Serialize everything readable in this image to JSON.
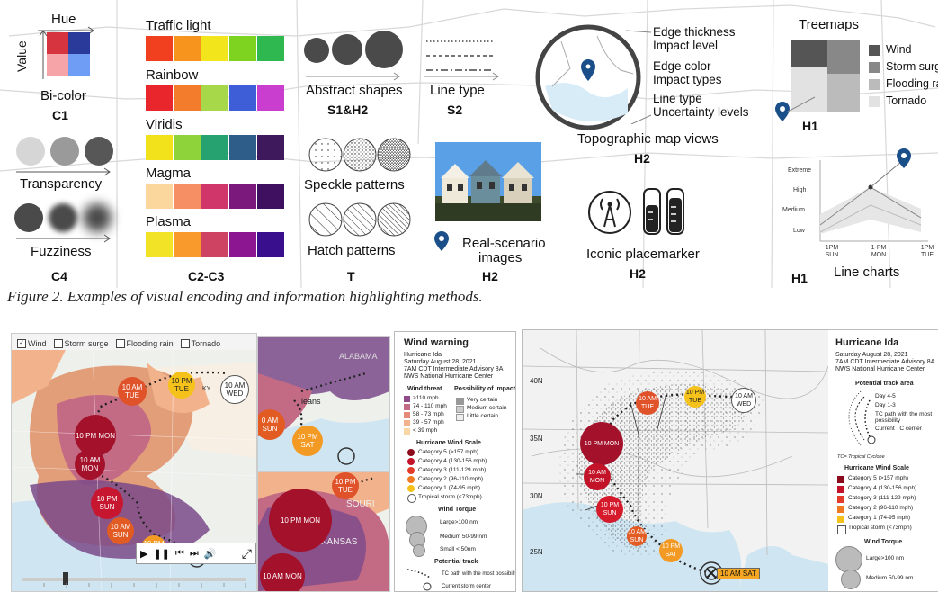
{
  "figure": {
    "caption": "Figure 2. Examples of visual encoding and information highlighting methods.",
    "c1": {
      "hue_label": "Hue",
      "value_label": "Value",
      "bicolor_label": "Bi-color",
      "code": "C1",
      "colors": [
        "#d6343f",
        "#2a3a9b",
        "#f6a4a8",
        "#6f9cf5"
      ]
    },
    "c4": {
      "transparency_label": "Transparency",
      "fuzziness_label": "Fuzziness",
      "code": "C4"
    },
    "c2c3": {
      "code": "C2-C3",
      "palettes": [
        {
          "name": "Traffic light",
          "colors": [
            "#f0401f",
            "#f7941d",
            "#f2e51b",
            "#7ed321",
            "#2eb84f"
          ]
        },
        {
          "name": "Rainbow",
          "colors": [
            "#e8262b",
            "#f27c2c",
            "#a6d84a",
            "#3e5ed8",
            "#c93ecf"
          ]
        },
        {
          "name": "Viridis",
          "colors": [
            "#f1e21c",
            "#8ed33a",
            "#25a270",
            "#2d5d88",
            "#3e1a5c"
          ]
        },
        {
          "name": "Magma",
          "colors": [
            "#fbd79d",
            "#f78f64",
            "#d1366a",
            "#7b1a7c",
            "#3f1060"
          ]
        },
        {
          "name": "Plasma",
          "colors": [
            "#f2e327",
            "#f89a2c",
            "#cf4362",
            "#8c1592",
            "#3a0f8e"
          ]
        }
      ]
    },
    "s1h2": {
      "label": "Abstract shapes",
      "code": "S1&H2"
    },
    "t": {
      "speckle_label": "Speckle patterns",
      "hatch_label": "Hatch patterns",
      "code": "T"
    },
    "s2": {
      "label": "Line type",
      "code": "S2"
    },
    "h2_real": {
      "label_line1": "Real-scenario",
      "label_line2": "images",
      "code": "H2"
    },
    "h2_topo": {
      "label": "Topographic map views",
      "code": "H2",
      "legend": [
        "Edge thickness",
        "Impact level",
        "Edge color",
        "Impact types",
        "Line type",
        "Uncertainty levels"
      ]
    },
    "h2_icon": {
      "label": "Iconic placemarker",
      "code": "H2"
    },
    "h1_tree": {
      "label": "Treemaps",
      "code": "H1",
      "items": [
        {
          "name": "Wind",
          "color": "#555555"
        },
        {
          "name": "Storm surge",
          "color": "#888888"
        },
        {
          "name": "Flooding rain",
          "color": "#bbbbbb"
        },
        {
          "name": "Tornado",
          "color": "#e2e2e2"
        }
      ]
    },
    "h1_line": {
      "label": "Line charts",
      "code": "H1",
      "y_ticks": [
        "Extreme",
        "High",
        "Medium",
        "Low"
      ],
      "x_ticks": [
        "1PM SUN",
        "1-PM MON",
        "1PM TUE"
      ]
    }
  },
  "screenshot_left": {
    "checkboxes": [
      {
        "label": "Wind",
        "checked": true
      },
      {
        "label": "Storm surge",
        "checked": false
      },
      {
        "label": "Flooding rain",
        "checked": false
      },
      {
        "label": "Tornado",
        "checked": false
      }
    ],
    "tc_points": [
      {
        "text": "10 PM TUE",
        "color": "#f5c21b"
      },
      {
        "text": "10 AM WED",
        "color": "#ffffff"
      },
      {
        "text": "10 AM TUE",
        "color": "#e0522a"
      },
      {
        "text": "10 PM MON",
        "color": "#a3112b"
      },
      {
        "text": "10 AM MON",
        "color": "#a3112b"
      },
      {
        "text": "10 PM SUN",
        "color": "#c7162f"
      },
      {
        "text": "10 AM SUN",
        "color": "#e25b23"
      },
      {
        "text": "10 PM SAT",
        "color": "#f39a24"
      }
    ],
    "map_labels": {
      "ky": "KY"
    },
    "player_controls": [
      "▶",
      "❚❚",
      "⏮",
      "⏭",
      "🔊"
    ],
    "expand_icon": "⤢"
  },
  "screenshot_middle": {
    "top_labels": {
      "alabama": "ALABAMA",
      "orleans": "leans"
    },
    "tc_points": [
      {
        "text": "0 AM SUN",
        "color": "#e25b23"
      },
      {
        "text": "10 PM SAT",
        "color": "#f39a24"
      }
    ],
    "bottom_labels": {
      "souri": "SOURI",
      "arkansas": "ARKANSAS"
    },
    "bottom_tc": [
      {
        "text": "10 PM TUE",
        "color": "#e0522a"
      },
      {
        "text": "10 PM MON",
        "color": "#a3112b"
      },
      {
        "text": "10 AM MON",
        "color": "#a3112b"
      }
    ]
  },
  "wind_warning": {
    "title": "Wind warning",
    "storm": "Hurricane Ida",
    "date": "Saturday August 28, 2021",
    "advisory": "7AM CDT Intermediate Advisory 8A",
    "center": "NWS National Hurricane Center",
    "wind_threat_title": "Wind threat",
    "wind_threat": [
      {
        "label": ">110 mph",
        "color": "#8f4a8a"
      },
      {
        "label": "74 - 110 mph",
        "color": "#c26a86"
      },
      {
        "label": "58 - 73 mph",
        "color": "#e58a78"
      },
      {
        "label": "39 - 57 mph",
        "color": "#f2b38c"
      },
      {
        "label": "< 39 mph",
        "color": "#f8d7a4"
      }
    ],
    "impact_title": "Possibility of impact",
    "impact": [
      "Very certain",
      "Medium certain",
      "Little certain"
    ],
    "scale_title": "Hurricane Wind Scale",
    "scale": [
      {
        "label": "Category 5 (>157 mph)",
        "color": "#8b0a1c"
      },
      {
        "label": "Category 4 (130-156 mph)",
        "color": "#c21328"
      },
      {
        "label": "Category 3 (111-129 mph)",
        "color": "#e23b2a"
      },
      {
        "label": "Category 2 (96-110 mph)",
        "color": "#f07a22"
      },
      {
        "label": "Category 1 (74-95 mph)",
        "color": "#f5c21b"
      },
      {
        "label": "Tropical storm (<73mph)",
        "color": "#ffffff"
      }
    ],
    "torque_title": "Wind Torque",
    "torque": [
      "Large>100 nm",
      "Medium 50-99 nm",
      "Small < 50nm"
    ],
    "track_title": "Potential track",
    "track": [
      "TC path with the most possibility",
      "Current storm center"
    ]
  },
  "right_map": {
    "lat_labels": [
      "40N",
      "35N",
      "30N",
      "25N"
    ],
    "tc_points": [
      {
        "text": "10 PM TUE",
        "color": "#f5c21b"
      },
      {
        "text": "10 AM WED",
        "color": "#ffffff"
      },
      {
        "text": "10 AM TUE",
        "color": "#e0522a"
      },
      {
        "text": "10 PM MON",
        "color": "#a3112b"
      },
      {
        "text": "10 AM MON",
        "color": "#c21328"
      },
      {
        "text": "10 PM SUN",
        "color": "#d51a2c"
      },
      {
        "text": "10 AM SUN",
        "color": "#e25b23"
      },
      {
        "text": "10 PM SAT",
        "color": "#f39a24"
      }
    ],
    "current_label": "10 AM SAT",
    "legend": {
      "title": "Hurricane Ida",
      "date": "Saturday August 28, 2021",
      "advisory": "7AM CDT Intermediate Advisory 8A",
      "center": "NWS National Hurricane Center",
      "track_title": "Potential track area",
      "track": [
        "Day 4-5",
        "Day 1-3",
        "TC path with the most possibility",
        "Current TC center"
      ],
      "tc_note": "TC= Tropical Cyclone",
      "scale_title": "Hurricane Wind Scale",
      "scale": [
        {
          "label": "Category 5 (>157 mph)",
          "color": "#8b0a1c"
        },
        {
          "label": "Category 4 (130-156 mph)",
          "color": "#c21328"
        },
        {
          "label": "Category 3 (111-129 mph)",
          "color": "#e23b2a"
        },
        {
          "label": "Category 2 (96-110 mph)",
          "color": "#f07a22"
        },
        {
          "label": "Category 1 (74-95 mph)",
          "color": "#f5c21b"
        },
        {
          "label": "Tropical storm (<73mph)",
          "color": "#ffffff"
        }
      ],
      "torque_title": "Wind Torque",
      "torque": [
        "Large>100 nm",
        "Medium 50-99 nm"
      ]
    }
  }
}
